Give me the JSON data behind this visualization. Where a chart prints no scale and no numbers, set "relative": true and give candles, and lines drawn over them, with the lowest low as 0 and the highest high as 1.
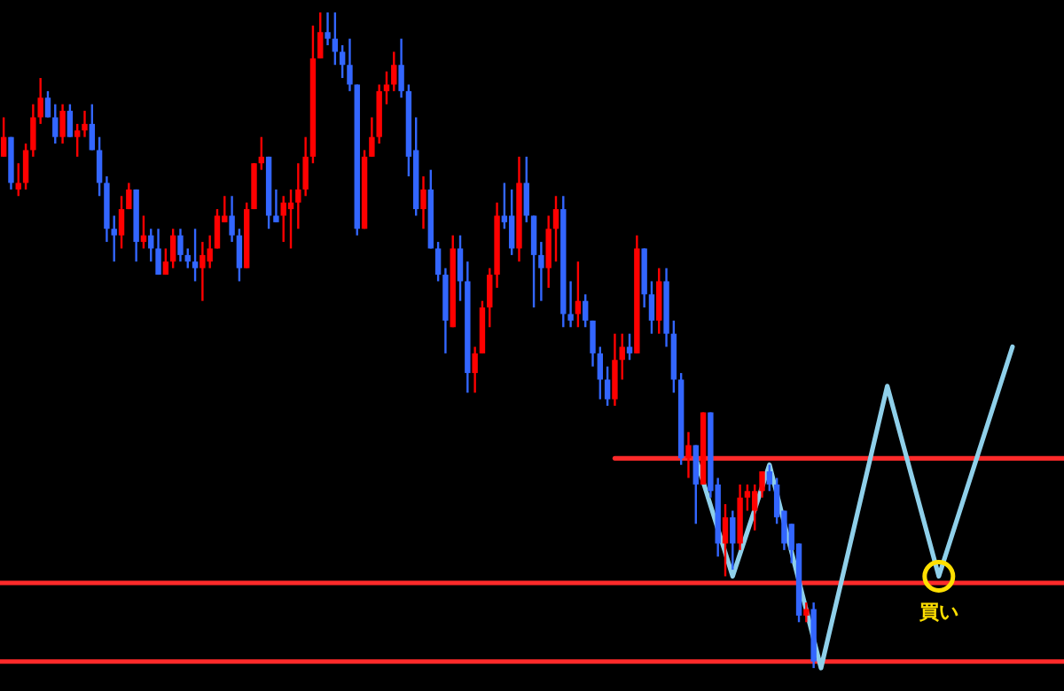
{
  "chart_data": {
    "type": "candlestick",
    "relative": true,
    "categories": [
      null,
      null,
      null,
      null,
      null,
      null,
      null,
      null,
      null,
      null,
      null,
      null,
      null,
      null,
      null,
      null,
      null,
      null,
      null,
      null,
      null,
      null,
      null,
      null,
      null,
      null,
      null,
      null,
      null,
      null,
      null,
      null,
      null,
      null,
      null,
      null,
      null,
      null,
      null,
      null,
      null,
      null,
      null,
      null,
      null,
      null,
      null,
      null,
      null,
      null,
      null,
      null,
      null,
      null,
      null,
      null,
      null,
      null,
      null,
      null,
      null,
      null,
      null,
      null,
      null,
      null,
      null,
      null,
      null,
      null,
      null,
      null,
      null,
      null,
      null,
      null,
      null,
      null,
      null,
      null,
      null,
      null,
      null,
      null,
      null,
      null,
      null,
      null,
      null,
      null,
      null,
      null,
      null,
      null,
      null,
      null,
      null,
      null,
      null,
      null,
      null,
      null,
      null,
      null,
      null,
      null,
      null,
      null,
      null,
      null,
      null,
      null,
      null,
      null,
      null,
      null,
      null,
      null,
      null,
      null,
      null,
      null,
      null,
      null,
      null,
      null,
      null,
      null,
      null,
      null,
      null,
      null,
      null,
      null,
      null,
      null,
      null,
      null,
      null,
      null,
      null,
      null,
      null,
      null,
      null
    ],
    "ohlc": [
      [
        0.78,
        0.84,
        0.78,
        0.81
      ],
      [
        0.81,
        0.81,
        0.73,
        0.74
      ],
      [
        0.73,
        0.77,
        0.72,
        0.74
      ],
      [
        0.74,
        0.8,
        0.73,
        0.79
      ],
      [
        0.79,
        0.86,
        0.78,
        0.84
      ],
      [
        0.84,
        0.9,
        0.83,
        0.87
      ],
      [
        0.87,
        0.88,
        0.84,
        0.84
      ],
      [
        0.84,
        0.86,
        0.8,
        0.81
      ],
      [
        0.81,
        0.86,
        0.8,
        0.85
      ],
      [
        0.85,
        0.86,
        0.81,
        0.81
      ],
      [
        0.81,
        0.83,
        0.78,
        0.82
      ],
      [
        0.82,
        0.85,
        0.81,
        0.83
      ],
      [
        0.83,
        0.86,
        0.79,
        0.79
      ],
      [
        0.79,
        0.81,
        0.72,
        0.74
      ],
      [
        0.74,
        0.75,
        0.65,
        0.67
      ],
      [
        0.67,
        0.69,
        0.62,
        0.66
      ],
      [
        0.66,
        0.72,
        0.64,
        0.7
      ],
      [
        0.7,
        0.74,
        0.7,
        0.73
      ],
      [
        0.73,
        0.73,
        0.62,
        0.65
      ],
      [
        0.65,
        0.69,
        0.64,
        0.66
      ],
      [
        0.66,
        0.67,
        0.62,
        0.64
      ],
      [
        0.64,
        0.67,
        0.6,
        0.6
      ],
      [
        0.6,
        0.64,
        0.6,
        0.62
      ],
      [
        0.62,
        0.67,
        0.61,
        0.66
      ],
      [
        0.66,
        0.67,
        0.62,
        0.63
      ],
      [
        0.63,
        0.64,
        0.61,
        0.62
      ],
      [
        0.62,
        0.67,
        0.59,
        0.61
      ],
      [
        0.61,
        0.65,
        0.56,
        0.63
      ],
      [
        0.62,
        0.66,
        0.61,
        0.64
      ],
      [
        0.64,
        0.7,
        0.64,
        0.69
      ],
      [
        0.68,
        0.72,
        0.68,
        0.69
      ],
      [
        0.69,
        0.72,
        0.65,
        0.66
      ],
      [
        0.66,
        0.67,
        0.59,
        0.61
      ],
      [
        0.61,
        0.71,
        0.61,
        0.7
      ],
      [
        0.7,
        0.77,
        0.7,
        0.77
      ],
      [
        0.77,
        0.81,
        0.76,
        0.78
      ],
      [
        0.78,
        0.78,
        0.67,
        0.69
      ],
      [
        0.69,
        0.73,
        0.68,
        0.68
      ],
      [
        0.69,
        0.72,
        0.65,
        0.71
      ],
      [
        0.7,
        0.73,
        0.64,
        0.71
      ],
      [
        0.71,
        0.77,
        0.67,
        0.73
      ],
      [
        0.73,
        0.81,
        0.72,
        0.78
      ],
      [
        0.78,
        0.98,
        0.77,
        0.93
      ],
      [
        0.93,
        1.0,
        0.93,
        0.97
      ],
      [
        0.97,
        1.0,
        0.95,
        0.96
      ],
      [
        0.96,
        1.0,
        0.92,
        0.94
      ],
      [
        0.94,
        0.95,
        0.9,
        0.92
      ],
      [
        0.92,
        0.96,
        0.88,
        0.89
      ],
      [
        0.89,
        0.89,
        0.66,
        0.67
      ],
      [
        0.67,
        0.79,
        0.67,
        0.78
      ],
      [
        0.78,
        0.84,
        0.78,
        0.81
      ],
      [
        0.81,
        0.89,
        0.8,
        0.88
      ],
      [
        0.88,
        0.91,
        0.86,
        0.89
      ],
      [
        0.89,
        0.94,
        0.88,
        0.92
      ],
      [
        0.92,
        0.96,
        0.87,
        0.88
      ],
      [
        0.88,
        0.89,
        0.75,
        0.78
      ],
      [
        0.79,
        0.84,
        0.69,
        0.7
      ],
      [
        0.7,
        0.75,
        0.67,
        0.73
      ],
      [
        0.73,
        0.76,
        0.64,
        0.64
      ],
      [
        0.64,
        0.65,
        0.59,
        0.6
      ],
      [
        0.6,
        0.61,
        0.48,
        0.53
      ],
      [
        0.52,
        0.66,
        0.52,
        0.64
      ],
      [
        0.64,
        0.66,
        0.56,
        0.59
      ],
      [
        0.59,
        0.62,
        0.42,
        0.45
      ],
      [
        0.45,
        0.49,
        0.42,
        0.48
      ],
      [
        0.48,
        0.56,
        0.48,
        0.55
      ],
      [
        0.55,
        0.61,
        0.52,
        0.6
      ],
      [
        0.6,
        0.71,
        0.58,
        0.69
      ],
      [
        0.69,
        0.74,
        0.67,
        0.68
      ],
      [
        0.69,
        0.73,
        0.63,
        0.64
      ],
      [
        0.64,
        0.78,
        0.62,
        0.74
      ],
      [
        0.74,
        0.78,
        0.68,
        0.69
      ],
      [
        0.69,
        0.69,
        0.55,
        0.63
      ],
      [
        0.63,
        0.65,
        0.56,
        0.61
      ],
      [
        0.61,
        0.69,
        0.58,
        0.67
      ],
      [
        0.67,
        0.72,
        0.62,
        0.7
      ],
      [
        0.7,
        0.72,
        0.52,
        0.54
      ],
      [
        0.54,
        0.59,
        0.52,
        0.53
      ],
      [
        0.54,
        0.62,
        0.52,
        0.56
      ],
      [
        0.56,
        0.57,
        0.52,
        0.53
      ],
      [
        0.53,
        0.53,
        0.46,
        0.48
      ],
      [
        0.48,
        0.49,
        0.41,
        0.44
      ],
      [
        0.44,
        0.46,
        0.4,
        0.41
      ],
      [
        0.41,
        0.51,
        0.4,
        0.47
      ],
      [
        0.47,
        0.51,
        0.44,
        0.49
      ],
      [
        0.49,
        0.51,
        0.47,
        0.48
      ],
      [
        0.48,
        0.66,
        0.48,
        0.64
      ],
      [
        0.64,
        0.64,
        0.55,
        0.57
      ],
      [
        0.57,
        0.59,
        0.51,
        0.53
      ],
      [
        0.53,
        0.61,
        0.51,
        0.59
      ],
      [
        0.59,
        0.61,
        0.49,
        0.51
      ],
      [
        0.51,
        0.53,
        0.42,
        0.44
      ],
      [
        0.44,
        0.45,
        0.31,
        0.32
      ],
      [
        0.32,
        0.36,
        0.29,
        0.34
      ],
      [
        0.34,
        0.34,
        0.22,
        0.28
      ],
      [
        0.28,
        0.39,
        0.28,
        0.39
      ],
      [
        0.39,
        0.39,
        0.26,
        0.27
      ],
      [
        0.28,
        0.29,
        0.17,
        0.19
      ],
      [
        0.19,
        0.25,
        0.14,
        0.23
      ],
      [
        0.23,
        0.24,
        0.15,
        0.19
      ],
      [
        0.19,
        0.28,
        0.18,
        0.26
      ],
      [
        0.26,
        0.28,
        0.24,
        0.27
      ],
      [
        0.24,
        0.28,
        0.21,
        0.27
      ],
      [
        0.27,
        0.3,
        0.26,
        0.3
      ],
      [
        0.3,
        0.31,
        0.27,
        0.28
      ],
      [
        0.28,
        0.29,
        0.22,
        0.23
      ],
      [
        0.24,
        0.24,
        0.18,
        0.19
      ],
      [
        0.22,
        0.22,
        0.16,
        0.18
      ],
      [
        0.19,
        0.19,
        0.07,
        0.08
      ],
      [
        0.08,
        0.1,
        0.07,
        0.09
      ],
      [
        0.09,
        0.1,
        0,
        0.01
      ],
      null,
      null,
      null,
      null,
      null,
      null,
      null,
      null,
      null,
      null,
      null,
      null,
      null,
      null,
      null,
      null,
      null,
      null,
      null,
      null,
      null,
      null,
      null,
      null,
      null,
      null,
      null,
      null,
      null,
      null,
      null,
      null,
      null,
      null
    ],
    "colors": [
      "#ff0000",
      "#3366ff",
      "#ff0000",
      "#ff0000",
      "#ff0000",
      "#ff0000",
      "#3366ff",
      "#3366ff",
      "#ff0000",
      "#3366ff",
      "#ff0000",
      "#ff0000",
      "#3366ff",
      "#3366ff",
      "#3366ff",
      "#3366ff",
      "#ff0000",
      "#ff0000",
      "#3366ff",
      "#ff0000",
      "#3366ff",
      "#3366ff",
      "#ff0000",
      "#ff0000",
      "#3366ff",
      "#3366ff",
      "#3366ff",
      "#ff0000",
      "#ff0000",
      "#ff0000",
      "#ff0000",
      "#3366ff",
      "#3366ff",
      "#ff0000",
      "#ff0000",
      "#ff0000",
      "#3366ff",
      "#3366ff",
      "#ff0000",
      "#ff0000",
      "#ff0000",
      "#ff0000",
      "#ff0000",
      "#ff0000",
      "#3366ff",
      "#3366ff",
      "#3366ff",
      "#3366ff",
      "#3366ff",
      "#ff0000",
      "#ff0000",
      "#ff0000",
      "#ff0000",
      "#ff0000",
      "#3366ff",
      "#3366ff",
      "#3366ff",
      "#ff0000",
      "#3366ff",
      "#3366ff",
      "#3366ff",
      "#ff0000",
      "#3366ff",
      "#3366ff",
      "#ff0000",
      "#ff0000",
      "#ff0000",
      "#ff0000",
      "#3366ff",
      "#3366ff",
      "#ff0000",
      "#3366ff",
      "#3366ff",
      "#3366ff",
      "#ff0000",
      "#ff0000",
      "#3366ff",
      "#3366ff",
      "#ff0000",
      "#3366ff",
      "#3366ff",
      "#3366ff",
      "#3366ff",
      "#ff0000",
      "#ff0000",
      "#3366ff",
      "#ff0000",
      "#3366ff",
      "#3366ff",
      "#ff0000",
      "#3366ff",
      "#3366ff",
      "#3366ff",
      "#ff0000",
      "#3366ff",
      "#ff0000",
      "#3366ff",
      "#3366ff",
      "#ff0000",
      "#3366ff",
      "#ff0000",
      "#ff0000",
      "#ff0000",
      "#ff0000",
      "#3366ff",
      "#3366ff",
      "#3366ff",
      "#3366ff",
      "#3366ff",
      "#ff0000",
      "#3366ff",
      null,
      null,
      null,
      null,
      null,
      null,
      null,
      null,
      null,
      null,
      null,
      null,
      null,
      null,
      null,
      null,
      null,
      null,
      null,
      null,
      null,
      null,
      null,
      null,
      null,
      null,
      null,
      null,
      null,
      null,
      null,
      null,
      null,
      null
    ],
    "series": [
      {
        "type": "line",
        "color": "#ff2a2a",
        "values": [
          null,
          null,
          null,
          null,
          null,
          null,
          null,
          null,
          null,
          null,
          null,
          null,
          null,
          null,
          null,
          null,
          null,
          null,
          null,
          null,
          null,
          null,
          null,
          null,
          null,
          null,
          null,
          null,
          null,
          null,
          null,
          null,
          null,
          null,
          null,
          null,
          null,
          null,
          null,
          null,
          null,
          null,
          null,
          null,
          null,
          null,
          null,
          null,
          null,
          null,
          null,
          null,
          null,
          null,
          null,
          null,
          null,
          null,
          null,
          null,
          null,
          null,
          null,
          null,
          null,
          null,
          null,
          null,
          null,
          null,
          null,
          null,
          null,
          null,
          null,
          null,
          null,
          null,
          null,
          null,
          null,
          null,
          null,
          0.32,
          0.32,
          0.32,
          0.32,
          0.32,
          0.32,
          0.32,
          0.32,
          0.32,
          0.32,
          0.32,
          0.32,
          0.32,
          0.32,
          0.32,
          0.32,
          0.32,
          0.32,
          0.32,
          0.32,
          0.32,
          0.32,
          0.32,
          0.32,
          0.32,
          0.32,
          0.32,
          0.32,
          0.32,
          0.32,
          0.32,
          0.32,
          0.32,
          0.32,
          0.32,
          0.32,
          0.32,
          0.32,
          0.32,
          0.32,
          0.32,
          0.32,
          0.32,
          0.32,
          0.32,
          0.32,
          0.32,
          0.32,
          0.32,
          0.32,
          0.32,
          0.32,
          0.32,
          0.32,
          0.32,
          0.32,
          0.32,
          0.32,
          0.32,
          0.32,
          0.32,
          0.32
        ]
      },
      {
        "type": "line",
        "color": "#8fd0ea",
        "values": [
          null,
          null,
          null,
          null,
          null,
          null,
          null,
          null,
          null,
          null,
          null,
          null,
          null,
          null,
          null,
          null,
          null,
          null,
          null,
          null,
          null,
          null,
          null,
          null,
          null,
          null,
          null,
          null,
          null,
          null,
          null,
          null,
          null,
          null,
          null,
          null,
          null,
          null,
          null,
          null,
          null,
          null,
          null,
          null,
          null,
          null,
          null,
          null,
          null,
          null,
          null,
          null,
          null,
          null,
          null,
          null,
          null,
          null,
          null,
          null,
          null,
          null,
          null,
          null,
          null,
          null,
          null,
          null,
          null,
          null,
          null,
          null,
          null,
          null,
          null,
          null,
          null,
          null,
          null,
          null,
          null,
          null,
          null,
          null,
          null,
          null,
          null,
          null,
          null,
          null,
          null,
          null,
          null,
          null,
          0.32,
          null,
          null,
          null,
          null,
          0.14,
          null,
          null,
          null,
          null,
          0.31,
          null,
          null,
          null,
          null,
          null,
          null,
          0,
          null,
          null,
          null,
          null,
          null,
          null,
          null,
          null,
          0.43,
          null,
          null,
          null,
          null,
          null,
          null,
          0.14,
          null,
          null,
          null,
          null,
          null,
          null,
          null,
          null,
          null,
          0.49,
          null,
          null,
          null,
          null,
          null,
          null,
          null
        ]
      }
    ],
    "ref_lines": [
      {
        "axis": "y",
        "value": 0.13,
        "color": "#ff2a2a"
      },
      {
        "axis": "y",
        "value": 0.01,
        "color": "#ff2a2a"
      }
    ],
    "annotations": [
      {
        "text": "買い",
        "y": 0.14
      }
    ]
  }
}
